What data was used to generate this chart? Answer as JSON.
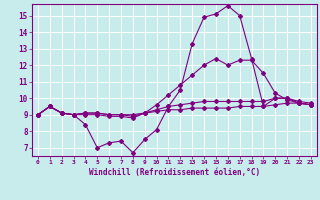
{
  "xlabel": "Windchill (Refroidissement éolien,°C)",
  "background_color": "#c8ecec",
  "grid_color": "#b0d8d8",
  "line_color": "#800080",
  "xlim": [
    -0.5,
    23.5
  ],
  "ylim": [
    6.5,
    15.7
  ],
  "xticks": [
    0,
    1,
    2,
    3,
    4,
    5,
    6,
    7,
    8,
    9,
    10,
    11,
    12,
    13,
    14,
    15,
    16,
    17,
    18,
    19,
    20,
    21,
    22,
    23
  ],
  "yticks": [
    7,
    8,
    9,
    10,
    11,
    12,
    13,
    14,
    15
  ],
  "line1_x": [
    0,
    1,
    2,
    3,
    4,
    5,
    6,
    7,
    8,
    9,
    10,
    11,
    12,
    13,
    14,
    15,
    16,
    17,
    18,
    19,
    20,
    21,
    22,
    23
  ],
  "line1_y": [
    9.0,
    9.5,
    9.1,
    9.0,
    8.4,
    7.0,
    7.3,
    7.4,
    6.7,
    7.5,
    8.1,
    9.5,
    10.5,
    13.3,
    14.9,
    15.1,
    15.6,
    15.0,
    12.4,
    9.5,
    10.0,
    10.0,
    9.7,
    9.6
  ],
  "line2_x": [
    0,
    1,
    2,
    3,
    4,
    5,
    6,
    7,
    8,
    9,
    10,
    11,
    12,
    13,
    14,
    15,
    16,
    17,
    18,
    19,
    20,
    21,
    22,
    23
  ],
  "line2_y": [
    9.0,
    9.5,
    9.1,
    9.0,
    9.0,
    9.0,
    8.9,
    8.9,
    8.8,
    9.1,
    9.6,
    10.2,
    10.8,
    11.4,
    12.0,
    12.4,
    12.0,
    12.3,
    12.3,
    11.5,
    10.3,
    9.9,
    9.7,
    9.6
  ],
  "line3_x": [
    0,
    1,
    2,
    3,
    4,
    5,
    6,
    7,
    8,
    9,
    10,
    11,
    12,
    13,
    14,
    15,
    16,
    17,
    18,
    19,
    20,
    21,
    22,
    23
  ],
  "line3_y": [
    9.0,
    9.5,
    9.1,
    9.0,
    9.1,
    9.1,
    9.0,
    9.0,
    8.9,
    9.1,
    9.3,
    9.5,
    9.6,
    9.7,
    9.8,
    9.8,
    9.8,
    9.8,
    9.8,
    9.8,
    10.0,
    10.0,
    9.8,
    9.7
  ],
  "line4_x": [
    0,
    1,
    2,
    3,
    4,
    5,
    6,
    7,
    8,
    9,
    10,
    11,
    12,
    13,
    14,
    15,
    16,
    17,
    18,
    19,
    20,
    21,
    22,
    23
  ],
  "line4_y": [
    9.0,
    9.5,
    9.1,
    9.0,
    9.1,
    9.1,
    9.0,
    9.0,
    9.0,
    9.1,
    9.2,
    9.3,
    9.3,
    9.4,
    9.4,
    9.4,
    9.4,
    9.5,
    9.5,
    9.5,
    9.6,
    9.7,
    9.7,
    9.6
  ]
}
